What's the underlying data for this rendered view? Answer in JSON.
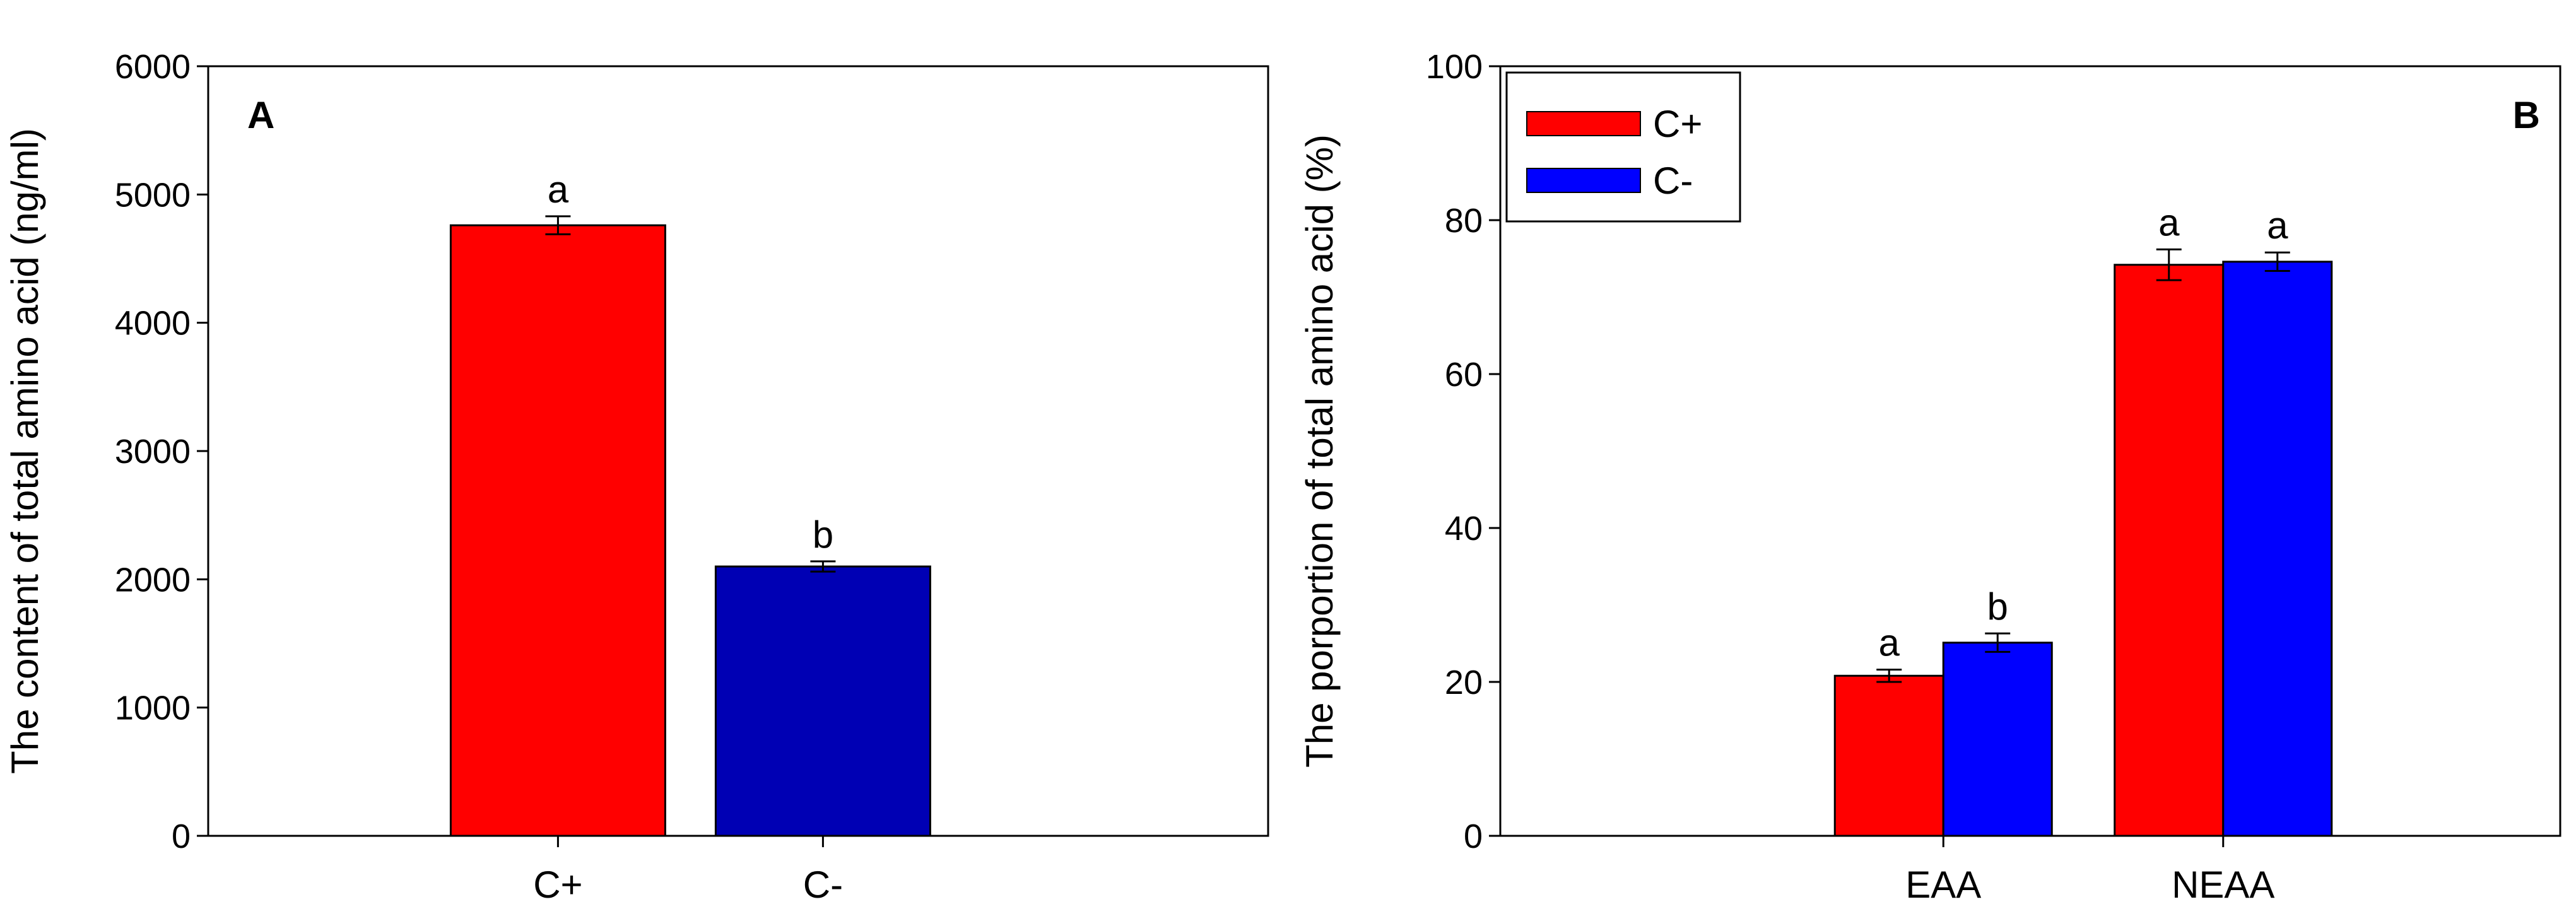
{
  "chart_data": [
    {
      "type": "bar",
      "panel_label": "A",
      "ylabel": "The content of total amino acid (ng/ml)",
      "xlabel": "",
      "ylim": [
        0,
        6000
      ],
      "yticks": [
        "0",
        "1000",
        "2000",
        "3000",
        "4000",
        "5000",
        "6000"
      ],
      "grid": false,
      "categories": [
        "C+",
        "C-"
      ],
      "values": [
        4760,
        2100
      ],
      "errors": [
        70,
        40
      ],
      "significance": [
        "a",
        "b"
      ],
      "colors": [
        "#ff0000",
        "#0000b4"
      ]
    },
    {
      "type": "bar",
      "panel_label": "B",
      "ylabel": "The porportion of total amino acid (%)",
      "xlabel": "",
      "ylim": [
        0,
        100
      ],
      "yticks": [
        "0",
        "20",
        "40",
        "60",
        "80",
        "100"
      ],
      "grid": false,
      "legend_position": "top-left",
      "categories": [
        "EAA",
        "NEAA"
      ],
      "series": [
        {
          "name": "C+",
          "color": "#ff0000",
          "values": [
            20.8,
            74.2
          ],
          "errors": [
            0.8,
            2.0
          ],
          "significance": [
            "a",
            "a"
          ]
        },
        {
          "name": "C-",
          "color": "#0000ff",
          "values": [
            25.1,
            74.6
          ],
          "errors": [
            1.2,
            1.2
          ],
          "significance": [
            "b",
            "a"
          ]
        }
      ]
    }
  ]
}
